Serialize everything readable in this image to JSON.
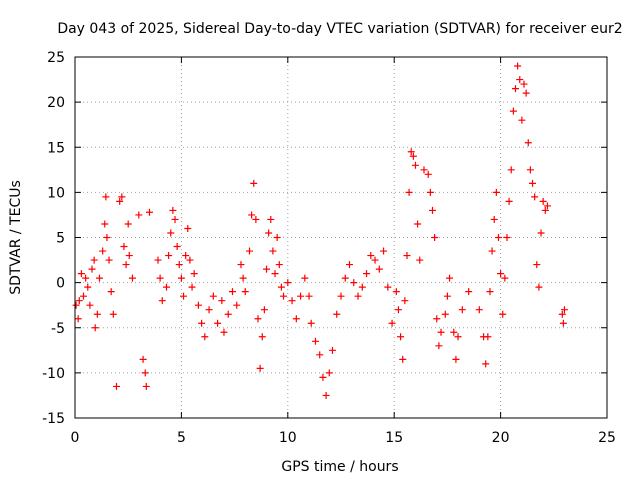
{
  "chart_data": {
    "type": "scatter",
    "title": "Day 043 of 2025, Sidereal Day-to-day VTEC variation (SDTVAR) for receiver eur2",
    "xlabel": "GPS time / hours",
    "ylabel": "SDTVAR / TECUs",
    "xlim": [
      0,
      25
    ],
    "ylim": [
      -15,
      25
    ],
    "xticks": [
      "0",
      "5",
      "10",
      "15",
      "20",
      "25"
    ],
    "yticks": [
      "25",
      "20",
      "15",
      "10",
      "5",
      "0",
      "-5",
      "-10",
      "-15"
    ],
    "grid": true,
    "marker": "+",
    "color": "#ff0000",
    "series": [
      {
        "name": "SDTVAR",
        "points": [
          [
            0.05,
            -2.5
          ],
          [
            0.15,
            -4.0
          ],
          [
            0.2,
            -2.0
          ],
          [
            0.3,
            1.0
          ],
          [
            0.4,
            -1.5
          ],
          [
            0.5,
            0.5
          ],
          [
            0.6,
            -0.5
          ],
          [
            0.7,
            -2.5
          ],
          [
            0.8,
            1.5
          ],
          [
            0.9,
            2.5
          ],
          [
            0.95,
            -5.0
          ],
          [
            1.05,
            -3.5
          ],
          [
            1.15,
            0.5
          ],
          [
            1.3,
            3.5
          ],
          [
            1.4,
            6.5
          ],
          [
            1.45,
            9.5
          ],
          [
            1.5,
            5.0
          ],
          [
            1.6,
            2.5
          ],
          [
            1.7,
            -1.0
          ],
          [
            1.8,
            -3.5
          ],
          [
            1.95,
            -11.5
          ],
          [
            2.1,
            9.0
          ],
          [
            2.2,
            9.5
          ],
          [
            2.3,
            4.0
          ],
          [
            2.4,
            2.0
          ],
          [
            2.5,
            6.5
          ],
          [
            2.55,
            3.0
          ],
          [
            2.7,
            0.5
          ],
          [
            3.0,
            7.5
          ],
          [
            3.2,
            -8.5
          ],
          [
            3.3,
            -10.0
          ],
          [
            3.35,
            -11.5
          ],
          [
            3.5,
            7.8
          ],
          [
            3.9,
            2.5
          ],
          [
            4.0,
            0.5
          ],
          [
            4.1,
            -2.0
          ],
          [
            4.3,
            -0.5
          ],
          [
            4.4,
            3.0
          ],
          [
            4.5,
            5.5
          ],
          [
            4.6,
            8.0
          ],
          [
            4.7,
            7.0
          ],
          [
            4.8,
            4.0
          ],
          [
            4.9,
            2.0
          ],
          [
            5.0,
            0.5
          ],
          [
            5.1,
            -1.5
          ],
          [
            5.2,
            3.0
          ],
          [
            5.3,
            6.0
          ],
          [
            5.4,
            2.5
          ],
          [
            5.5,
            -0.5
          ],
          [
            5.6,
            1.0
          ],
          [
            5.8,
            -2.5
          ],
          [
            5.95,
            -4.5
          ],
          [
            6.1,
            -6.0
          ],
          [
            6.3,
            -3.0
          ],
          [
            6.5,
            -1.5
          ],
          [
            6.7,
            -4.5
          ],
          [
            6.9,
            -2.0
          ],
          [
            7.0,
            -5.5
          ],
          [
            7.2,
            -3.5
          ],
          [
            7.4,
            -1.0
          ],
          [
            7.6,
            -2.5
          ],
          [
            7.8,
            2.0
          ],
          [
            7.9,
            0.5
          ],
          [
            8.0,
            -1.0
          ],
          [
            8.2,
            3.5
          ],
          [
            8.3,
            7.5
          ],
          [
            8.4,
            11.0
          ],
          [
            8.5,
            7.0
          ],
          [
            8.6,
            -4.0
          ],
          [
            8.7,
            -9.5
          ],
          [
            8.8,
            -6.0
          ],
          [
            8.9,
            -3.0
          ],
          [
            9.0,
            1.5
          ],
          [
            9.1,
            5.5
          ],
          [
            9.2,
            7.0
          ],
          [
            9.3,
            3.5
          ],
          [
            9.4,
            1.0
          ],
          [
            9.5,
            5.0
          ],
          [
            9.6,
            2.0
          ],
          [
            9.7,
            -0.5
          ],
          [
            9.8,
            -1.5
          ],
          [
            10.0,
            0.0
          ],
          [
            10.2,
            -2.0
          ],
          [
            10.4,
            -4.0
          ],
          [
            10.6,
            -1.5
          ],
          [
            10.8,
            0.5
          ],
          [
            11.0,
            -1.5
          ],
          [
            11.1,
            -4.5
          ],
          [
            11.3,
            -6.5
          ],
          [
            11.5,
            -8.0
          ],
          [
            11.65,
            -10.5
          ],
          [
            11.8,
            -12.5
          ],
          [
            11.95,
            -10.0
          ],
          [
            12.1,
            -7.5
          ],
          [
            12.3,
            -3.5
          ],
          [
            12.5,
            -1.5
          ],
          [
            12.7,
            0.5
          ],
          [
            12.9,
            2.0
          ],
          [
            13.1,
            0.0
          ],
          [
            13.3,
            -1.5
          ],
          [
            13.5,
            -0.5
          ],
          [
            13.7,
            1.0
          ],
          [
            13.9,
            3.0
          ],
          [
            14.1,
            2.5
          ],
          [
            14.3,
            1.5
          ],
          [
            14.5,
            3.5
          ],
          [
            14.7,
            -0.5
          ],
          [
            14.9,
            -4.5
          ],
          [
            15.1,
            -1.0
          ],
          [
            15.2,
            -3.0
          ],
          [
            15.3,
            -6.0
          ],
          [
            15.4,
            -8.5
          ],
          [
            15.5,
            -2.0
          ],
          [
            15.6,
            3.0
          ],
          [
            15.7,
            10.0
          ],
          [
            15.8,
            14.5
          ],
          [
            15.9,
            14.0
          ],
          [
            16.0,
            13.0
          ],
          [
            16.1,
            6.5
          ],
          [
            16.2,
            2.5
          ],
          [
            16.4,
            12.5
          ],
          [
            16.6,
            12.0
          ],
          [
            16.7,
            10.0
          ],
          [
            16.8,
            8.0
          ],
          [
            16.9,
            5.0
          ],
          [
            17.0,
            -4.0
          ],
          [
            17.1,
            -7.0
          ],
          [
            17.2,
            -5.5
          ],
          [
            17.4,
            -3.5
          ],
          [
            17.5,
            -1.5
          ],
          [
            17.6,
            0.5
          ],
          [
            17.8,
            -5.5
          ],
          [
            17.9,
            -8.5
          ],
          [
            18.0,
            -6.0
          ],
          [
            18.2,
            -3.0
          ],
          [
            18.5,
            -1.0
          ],
          [
            19.0,
            -3.0
          ],
          [
            19.2,
            -6.0
          ],
          [
            19.3,
            -9.0
          ],
          [
            19.4,
            -6.0
          ],
          [
            19.5,
            -1.0
          ],
          [
            19.6,
            3.5
          ],
          [
            19.7,
            7.0
          ],
          [
            19.8,
            10.0
          ],
          [
            19.9,
            5.0
          ],
          [
            20.0,
            1.0
          ],
          [
            20.1,
            -3.5
          ],
          [
            20.2,
            0.5
          ],
          [
            20.3,
            5.0
          ],
          [
            20.4,
            9.0
          ],
          [
            20.5,
            12.5
          ],
          [
            20.6,
            19.0
          ],
          [
            20.7,
            21.5
          ],
          [
            20.8,
            24.0
          ],
          [
            20.9,
            22.5
          ],
          [
            21.0,
            18.0
          ],
          [
            21.1,
            22.0
          ],
          [
            21.2,
            21.0
          ],
          [
            21.3,
            15.5
          ],
          [
            21.4,
            12.5
          ],
          [
            21.5,
            11.0
          ],
          [
            21.6,
            9.5
          ],
          [
            21.7,
            2.0
          ],
          [
            21.8,
            -0.5
          ],
          [
            21.9,
            5.5
          ],
          [
            22.0,
            9.0
          ],
          [
            22.1,
            8.0
          ],
          [
            22.2,
            8.5
          ],
          [
            22.9,
            -3.5
          ],
          [
            22.95,
            -4.5
          ],
          [
            23.0,
            -3.0
          ]
        ]
      }
    ]
  }
}
